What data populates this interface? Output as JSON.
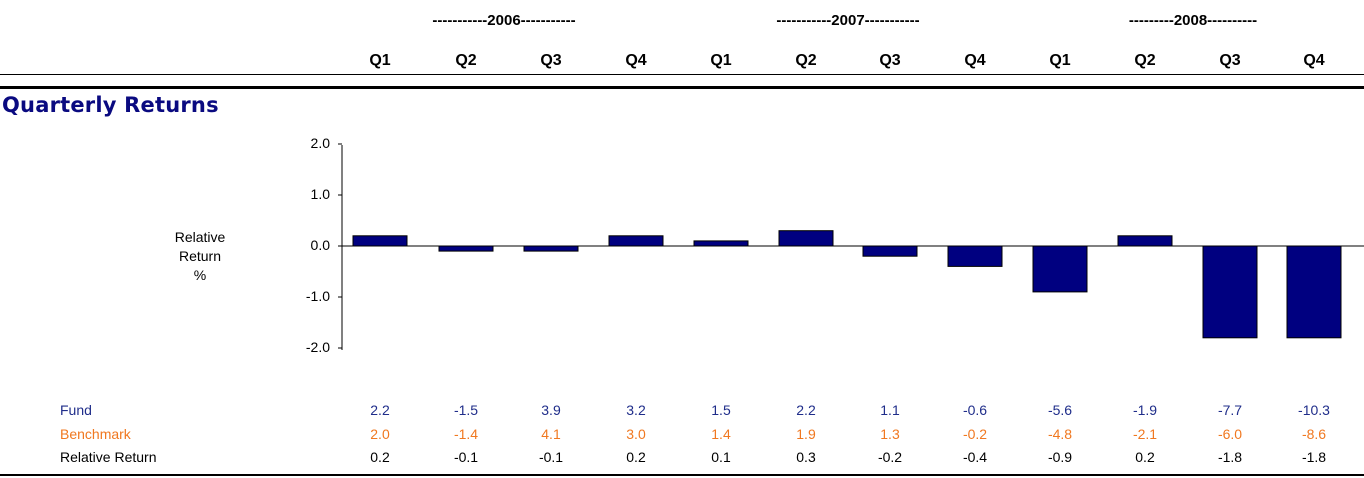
{
  "header": {
    "years": [
      "-----------2006-----------",
      "-----------2007-----------",
      "---------2008----------"
    ],
    "quarters": [
      "Q1",
      "Q2",
      "Q3",
      "Q4",
      "Q1",
      "Q2",
      "Q3",
      "Q4",
      "Q1",
      "Q2",
      "Q3",
      "Q4"
    ]
  },
  "section_title": "Quarterly Returns",
  "chart_data": {
    "type": "bar",
    "categories": [
      "2006 Q1",
      "2006 Q2",
      "2006 Q3",
      "2006 Q4",
      "2007 Q1",
      "2007 Q2",
      "2007 Q3",
      "2007 Q4",
      "2008 Q1",
      "2008 Q2",
      "2008 Q3",
      "2008 Q4"
    ],
    "values": [
      0.2,
      -0.1,
      -0.1,
      0.2,
      0.1,
      0.3,
      -0.2,
      -0.4,
      -0.9,
      0.2,
      -1.8,
      -1.8
    ],
    "ylabel_lines": [
      "Relative",
      "Return",
      "%"
    ],
    "yticks": [
      "2.0",
      "1.0",
      "0.0",
      "-1.0",
      "-2.0"
    ],
    "ylim": [
      -2.0,
      2.0
    ],
    "bar_color": "#000080",
    "grid": false
  },
  "table": {
    "rows": [
      {
        "label": "Fund",
        "color": "#1f2d8a",
        "values": [
          "2.2",
          "-1.5",
          "3.9",
          "3.2",
          "1.5",
          "2.2",
          "1.1",
          "-0.6",
          "-5.6",
          "-1.9",
          "-7.7",
          "-10.3"
        ]
      },
      {
        "label": "Benchmark",
        "color": "#f07820",
        "values": [
          "2.0",
          "-1.4",
          "4.1",
          "3.0",
          "1.4",
          "1.9",
          "1.3",
          "-0.2",
          "-4.8",
          "-2.1",
          "-6.0",
          "-8.6"
        ]
      },
      {
        "label": "Relative Return",
        "color": "#000000",
        "values": [
          "0.2",
          "-0.1",
          "-0.1",
          "0.2",
          "0.1",
          "0.3",
          "-0.2",
          "-0.4",
          "-0.9",
          "0.2",
          "-1.8",
          "-1.8"
        ]
      }
    ]
  }
}
